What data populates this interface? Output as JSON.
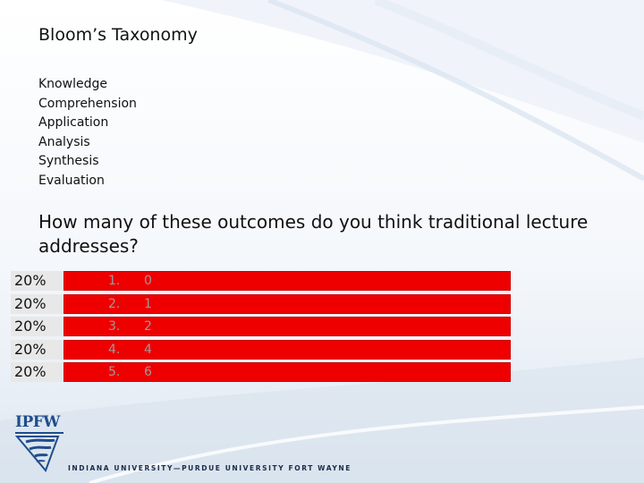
{
  "slide": {
    "title": "Bloom’s Taxonomy",
    "levels": [
      "Knowledge",
      "Comprehension",
      "Application",
      "Analysis",
      "Synthesis",
      "Evaluation"
    ],
    "question": "How many of these outcomes do you think traditional lecture addresses?",
    "results": [
      {
        "percent": "20%",
        "number": "1.",
        "answer": "0",
        "fraction": 0.2
      },
      {
        "percent": "20%",
        "number": "2.",
        "answer": "1",
        "fraction": 0.2
      },
      {
        "percent": "20%",
        "number": "3.",
        "answer": "2",
        "fraction": 0.2
      },
      {
        "percent": "20%",
        "number": "4.",
        "answer": "4",
        "fraction": 0.2
      },
      {
        "percent": "20%",
        "number": "5.",
        "answer": "6",
        "fraction": 0.2
      }
    ],
    "bar_color": "#ee0000"
  },
  "branding": {
    "logo_text": "IPFW",
    "footer_text": "INDIANA UNIVERSITY—PURDUE UNIVERSITY FORT WAYNE",
    "brand_color": "#1f4e8c"
  }
}
